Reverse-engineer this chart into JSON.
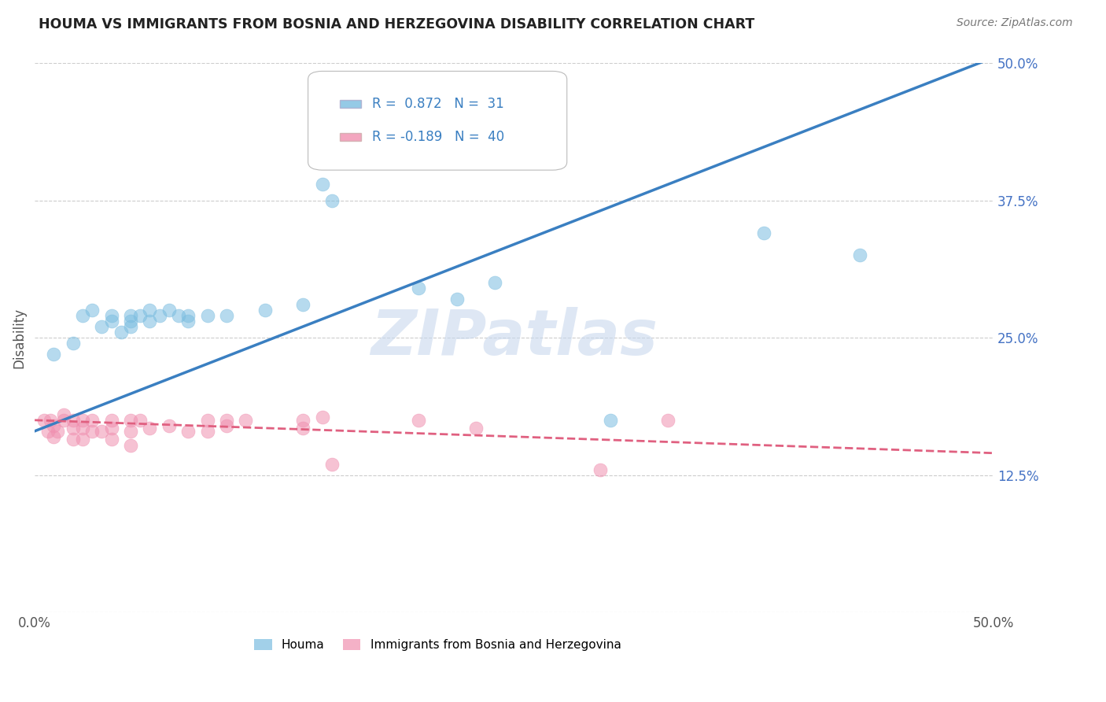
{
  "title": "HOUMA VS IMMIGRANTS FROM BOSNIA AND HERZEGOVINA DISABILITY CORRELATION CHART",
  "source": "Source: ZipAtlas.com",
  "ylabel": "Disability",
  "xlim": [
    0.0,
    0.5
  ],
  "ylim": [
    0.0,
    0.5
  ],
  "xticks": [
    0.0,
    0.125,
    0.25,
    0.375,
    0.5
  ],
  "xticklabels": [
    "0.0%",
    "",
    "",
    "",
    "50.0%"
  ],
  "yticks": [
    0.0,
    0.125,
    0.25,
    0.375,
    0.5
  ],
  "yticklabels": [
    "",
    "12.5%",
    "25.0%",
    "37.5%",
    "50.0%"
  ],
  "blue_R": 0.872,
  "blue_N": 31,
  "pink_R": -0.189,
  "pink_N": 40,
  "blue_color": "#7bbde0",
  "pink_color": "#f090b0",
  "blue_line_color": "#3a7fc1",
  "pink_line_color": "#e06080",
  "legend_label_blue": "Houma",
  "legend_label_pink": "Immigrants from Bosnia and Herzegovina",
  "watermark": "ZIPatlas",
  "background_color": "#ffffff",
  "blue_scatter": [
    [
      0.01,
      0.235
    ],
    [
      0.02,
      0.245
    ],
    [
      0.025,
      0.27
    ],
    [
      0.03,
      0.275
    ],
    [
      0.035,
      0.26
    ],
    [
      0.04,
      0.27
    ],
    [
      0.04,
      0.265
    ],
    [
      0.045,
      0.255
    ],
    [
      0.05,
      0.27
    ],
    [
      0.05,
      0.265
    ],
    [
      0.05,
      0.26
    ],
    [
      0.055,
      0.27
    ],
    [
      0.06,
      0.265
    ],
    [
      0.06,
      0.275
    ],
    [
      0.065,
      0.27
    ],
    [
      0.07,
      0.275
    ],
    [
      0.075,
      0.27
    ],
    [
      0.08,
      0.27
    ],
    [
      0.08,
      0.265
    ],
    [
      0.09,
      0.27
    ],
    [
      0.1,
      0.27
    ],
    [
      0.12,
      0.275
    ],
    [
      0.14,
      0.28
    ],
    [
      0.15,
      0.39
    ],
    [
      0.155,
      0.375
    ],
    [
      0.2,
      0.295
    ],
    [
      0.22,
      0.285
    ],
    [
      0.24,
      0.3
    ],
    [
      0.3,
      0.175
    ],
    [
      0.38,
      0.345
    ],
    [
      0.43,
      0.325
    ]
  ],
  "pink_scatter": [
    [
      0.005,
      0.175
    ],
    [
      0.007,
      0.165
    ],
    [
      0.008,
      0.175
    ],
    [
      0.01,
      0.17
    ],
    [
      0.01,
      0.16
    ],
    [
      0.012,
      0.165
    ],
    [
      0.015,
      0.175
    ],
    [
      0.015,
      0.18
    ],
    [
      0.02,
      0.175
    ],
    [
      0.02,
      0.168
    ],
    [
      0.02,
      0.158
    ],
    [
      0.025,
      0.175
    ],
    [
      0.025,
      0.168
    ],
    [
      0.025,
      0.158
    ],
    [
      0.03,
      0.175
    ],
    [
      0.03,
      0.165
    ],
    [
      0.035,
      0.165
    ],
    [
      0.04,
      0.175
    ],
    [
      0.04,
      0.168
    ],
    [
      0.04,
      0.158
    ],
    [
      0.05,
      0.175
    ],
    [
      0.05,
      0.165
    ],
    [
      0.05,
      0.152
    ],
    [
      0.055,
      0.175
    ],
    [
      0.06,
      0.168
    ],
    [
      0.07,
      0.17
    ],
    [
      0.08,
      0.165
    ],
    [
      0.09,
      0.175
    ],
    [
      0.09,
      0.165
    ],
    [
      0.1,
      0.17
    ],
    [
      0.1,
      0.175
    ],
    [
      0.11,
      0.175
    ],
    [
      0.14,
      0.175
    ],
    [
      0.14,
      0.168
    ],
    [
      0.15,
      0.178
    ],
    [
      0.155,
      0.135
    ],
    [
      0.2,
      0.175
    ],
    [
      0.23,
      0.168
    ],
    [
      0.295,
      0.13
    ],
    [
      0.33,
      0.175
    ]
  ],
  "blue_line_x": [
    0.0,
    0.5
  ],
  "blue_line_y": [
    0.165,
    0.505
  ],
  "pink_line_x": [
    0.0,
    0.5
  ],
  "pink_line_y": [
    0.175,
    0.145
  ]
}
